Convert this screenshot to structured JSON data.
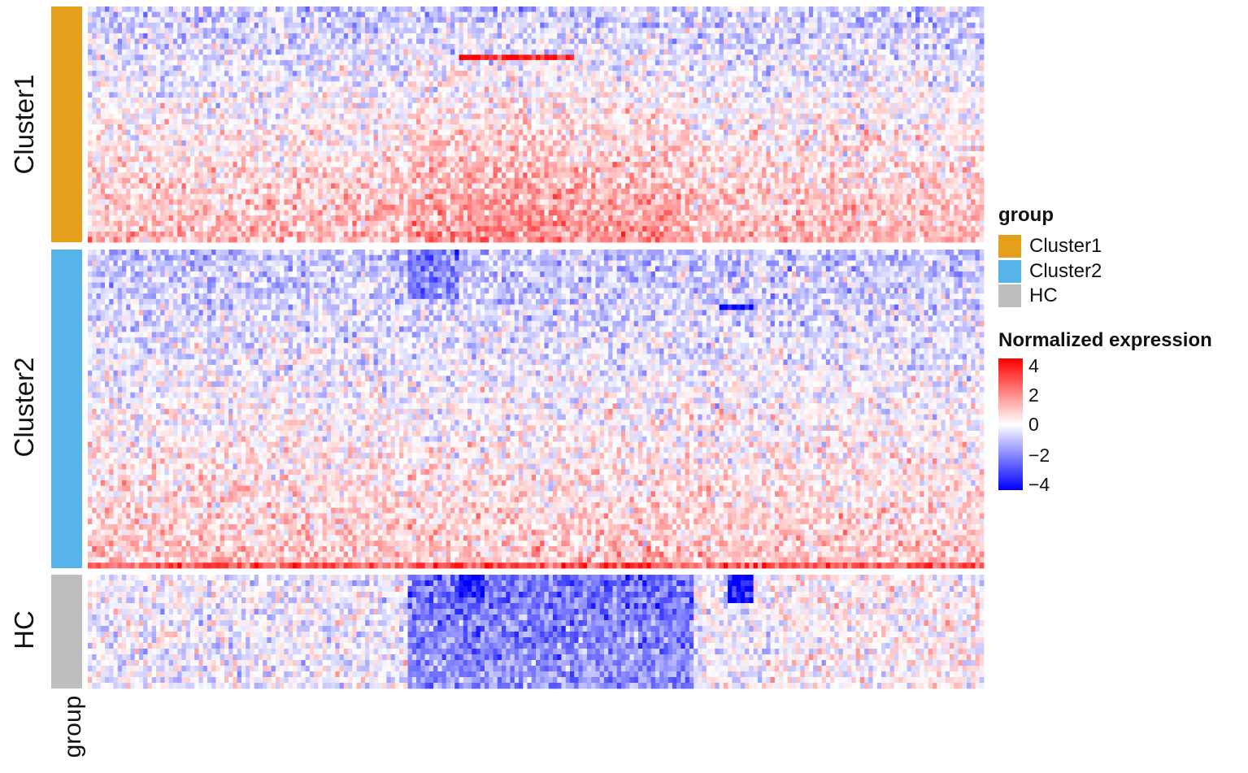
{
  "chart_data": {
    "type": "heatmap",
    "title": "",
    "annotation_label": "group",
    "groups": [
      {
        "name": "Cluster1",
        "color": "#E69F1A"
      },
      {
        "name": "Cluster2",
        "color": "#56B4E9"
      },
      {
        "name": "HC",
        "color": "#BEBEBE"
      }
    ],
    "color_scale": {
      "title": "Normalized expression",
      "min": -4,
      "max": 4,
      "ticks": [
        "4",
        "2",
        "0",
        "−2",
        "−4"
      ],
      "colors": {
        "low": "#0000FF",
        "mid": "#FFFFFF",
        "high": "#FF0000"
      }
    },
    "legend": {
      "title": "group",
      "position": "right",
      "items": [
        "Cluster1",
        "Cluster2",
        "HC"
      ]
    }
  }
}
